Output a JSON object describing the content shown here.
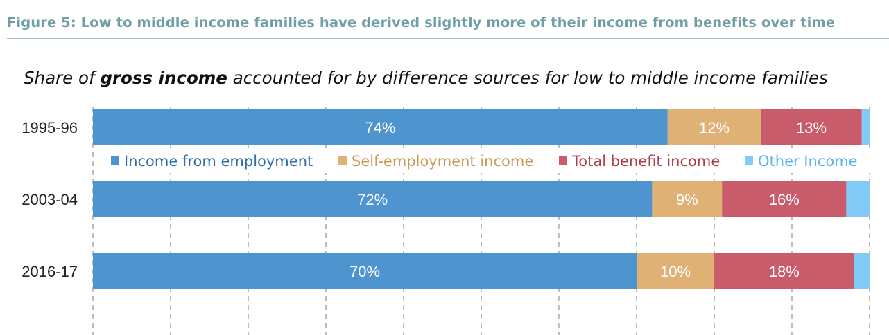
{
  "figure_title": "Figure 5:  Low to middle income families have derived slightly more of their income from benefits over time",
  "chart_title": {
    "prefix": "Share of ",
    "emphasis": "gross income",
    "suffix": " accounted for by difference sources for low to middle income families"
  },
  "colors": {
    "title_teal": "#6f9fa4",
    "employment": "#4e95cf",
    "self_employment": "#e0b175",
    "benefit": "#c95c6b",
    "other": "#82cbf7",
    "legend_employment_text": "#2f6ea8",
    "legend_self_text": "#c99a5b",
    "legend_benefit_text": "#b03d4d",
    "legend_other_text": "#5ab7ef"
  },
  "chart_data": {
    "type": "bar",
    "orientation": "horizontal",
    "stacked": true,
    "categories": [
      "1995-96",
      "2003-04",
      "2016-17"
    ],
    "series": [
      {
        "name": "Income from employment",
        "values": [
          74,
          72,
          70
        ],
        "labels": [
          "74%",
          "72%",
          "70%"
        ],
        "color_key": "employment"
      },
      {
        "name": "Self-employment income",
        "values": [
          12,
          9,
          10
        ],
        "labels": [
          "12%",
          "9%",
          "10%"
        ],
        "color_key": "self_employment"
      },
      {
        "name": "Total benefit income",
        "values": [
          13,
          16,
          18
        ],
        "labels": [
          "13%",
          "16%",
          "18%"
        ],
        "color_key": "benefit"
      },
      {
        "name": "Other Income",
        "values": [
          1,
          3,
          3
        ],
        "labels": [
          "",
          "",
          ""
        ],
        "color_key": "other"
      }
    ],
    "xlim": [
      0,
      100
    ],
    "grid": "vertical dashed",
    "legend_position": "between first and second bar"
  }
}
